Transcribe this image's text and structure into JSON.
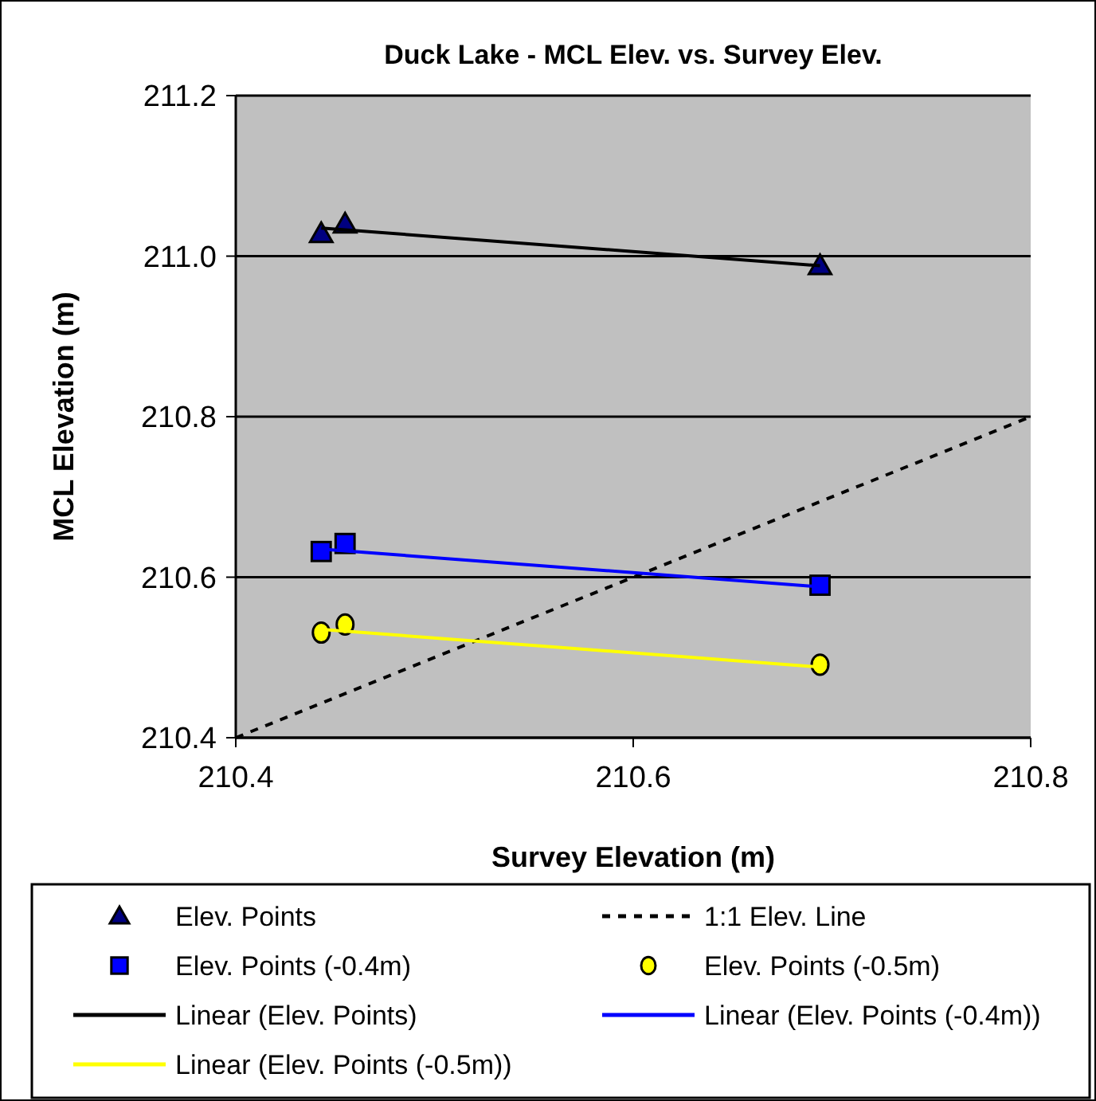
{
  "chart_data": {
    "type": "scatter",
    "title": "Duck Lake - MCL Elev. vs. Survey Elev.",
    "xlabel": "Survey Elevation (m)",
    "ylabel": "MCL Elevation (m)",
    "xlim": [
      210.4,
      210.8
    ],
    "xticks": [
      210.4,
      210.6,
      210.8
    ],
    "ylim": [
      210.4,
      211.2
    ],
    "yticks": [
      210.4,
      210.6,
      210.8,
      {
        "value": 211.0,
        "label": "211.0"
      },
      211.2
    ],
    "grid": "y",
    "legend": "bottom",
    "series": [
      {
        "name": "Elev. Points",
        "marker": "triangle",
        "color": "#000080",
        "x": [
          210.443,
          210.455,
          210.694
        ],
        "values": [
          211.028,
          211.04,
          210.988
        ]
      },
      {
        "name": "1:1 Elev. Line",
        "type": "line",
        "marker": "none",
        "line_style": "dashed",
        "color": "#000000",
        "x": [
          210.4,
          210.8
        ],
        "values": [
          210.4,
          210.8
        ]
      },
      {
        "name": "Elev. Points (-0.4m)",
        "marker": "square",
        "color": "#0000ff",
        "x": [
          210.443,
          210.455,
          210.694
        ],
        "values": [
          210.632,
          210.642,
          210.59
        ]
      },
      {
        "name": "Elev. Points (-0.5m)",
        "marker": "circle",
        "color": "#ffff00",
        "x": [
          210.443,
          210.455,
          210.694
        ],
        "values": [
          210.531,
          210.541,
          210.491
        ]
      },
      {
        "name": "Linear (Elev. Points)",
        "type": "line",
        "marker": "none",
        "line_style": "solid",
        "color": "#000000",
        "x": [
          210.443,
          210.694
        ],
        "values": [
          211.035,
          210.988
        ]
      },
      {
        "name": "Linear (Elev. Points (-0.4m))",
        "type": "line",
        "marker": "none",
        "line_style": "solid",
        "color": "#0000ff",
        "x": [
          210.443,
          210.694
        ],
        "values": [
          210.635,
          210.588
        ]
      },
      {
        "name": "Linear (Elev. Points (-0.5m))",
        "type": "line",
        "marker": "none",
        "line_style": "solid",
        "color": "#ffff00",
        "x": [
          210.443,
          210.694
        ],
        "values": [
          210.535,
          210.488
        ]
      }
    ]
  }
}
